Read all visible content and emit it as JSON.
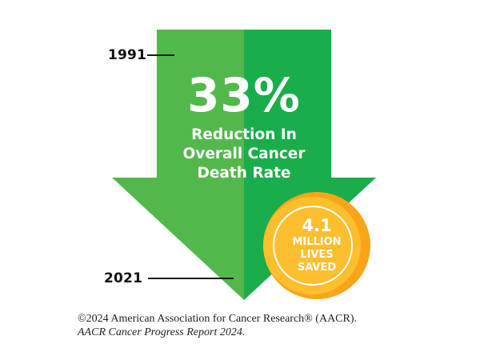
{
  "timeline": {
    "start_year": "1991",
    "end_year": "2021"
  },
  "arrow": {
    "stat": "33%",
    "caption_lines": [
      "Reduction In",
      "Overall Cancer",
      "Death Rate"
    ],
    "colors": {
      "left": "#53b84c",
      "right": "#1aad4b"
    }
  },
  "badge": {
    "number": "4.1",
    "lines": [
      "MILLION",
      "LIVES",
      "SAVED"
    ],
    "colors": {
      "inner": "#fdbf2d",
      "outer": "#f9a51b",
      "ring": "#ffffff"
    }
  },
  "credit": {
    "line1": "©2024 American Association for Cancer Research® (AACR).",
    "line2": "AACR Cancer Progress Report 2024."
  }
}
